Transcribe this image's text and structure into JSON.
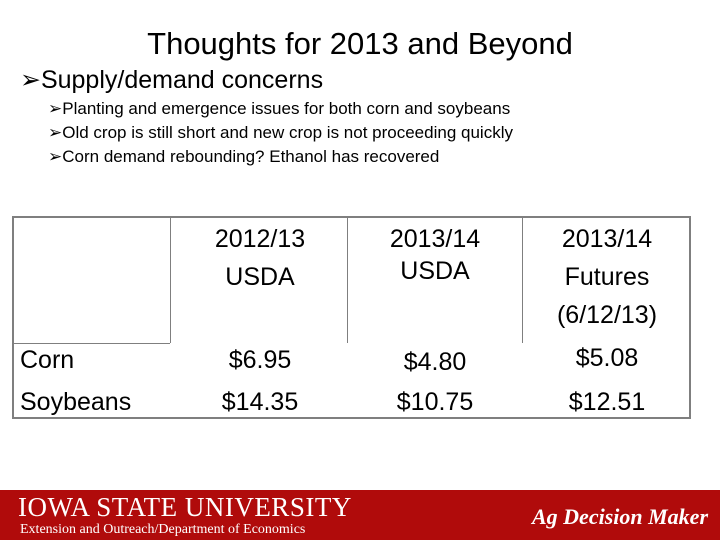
{
  "slide": {
    "title": "Thoughts for 2013 and Beyond",
    "main_bullet": "Supply/demand concerns",
    "bullet_glyph": "➢",
    "sub_bullets": [
      "Planting and emergence issues for both corn and soybeans",
      "Old crop is still short and new crop is not proceeding quickly",
      "Corn demand rebounding?  Ethanol has recovered"
    ]
  },
  "table": {
    "headers": [
      {
        "line1": "2012/13",
        "line2": "USDA",
        "line3": ""
      },
      {
        "line1": "2013/14",
        "line2": "USDA",
        "line3": ""
      },
      {
        "line1": "2013/14",
        "line2": "Futures",
        "line3": "(6/12/13)"
      }
    ],
    "rows": [
      {
        "label": "Corn",
        "values": [
          "$6.95",
          "$4.80",
          "$5.08"
        ]
      },
      {
        "label": "Soybeans",
        "values": [
          "$14.35",
          "$10.75",
          "$12.51"
        ]
      }
    ]
  },
  "footer": {
    "logo_text": "IOWA STATE UNIVERSITY",
    "subtitle": "Extension and Outreach/Department of Economics",
    "brand": "Ag Decision Maker",
    "bar_color": "#b00b0b"
  }
}
